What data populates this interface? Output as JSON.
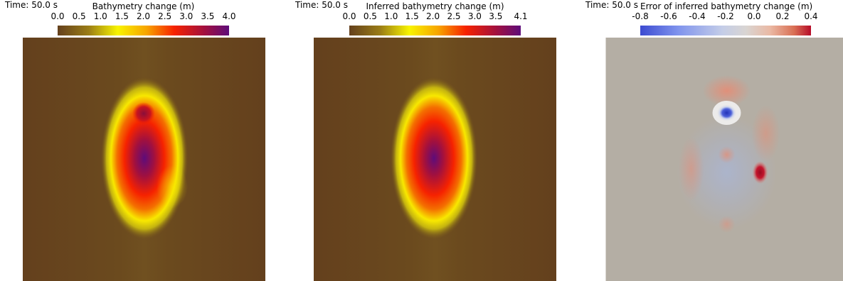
{
  "panels": [
    {
      "time": "Time: 50.0 s",
      "colorbar_title": "Bathymetry change (m)",
      "ticks": [
        "0.0",
        "0.5",
        "1.0",
        "1.5",
        "2.0",
        "2.5",
        "3.0",
        "3.5",
        "4.0"
      ]
    },
    {
      "time": "Time: 50.0 s",
      "colorbar_title": "Inferred bathymetry change (m)",
      "ticks": [
        "0.0",
        "0.5",
        "1.0",
        "1.5",
        "2.0",
        "2.5",
        "3.0",
        "3.5",
        "4.1"
      ]
    },
    {
      "time": "Time: 50.0 s",
      "colorbar_title": "Error of inferred bathymetry change (m)",
      "ticks": [
        "-0.8",
        "-0.6",
        "-0.4",
        "-0.2",
        "0.0",
        "0.2",
        "0.4"
      ]
    }
  ],
  "colors": {
    "bathy_colormap": [
      "#64401d",
      "#9a7c16",
      "#f8f400",
      "#f7a400",
      "#f62200",
      "#a01040",
      "#5e0c7a"
    ],
    "error_colormap": [
      "#3c4bd1",
      "#7f93ed",
      "#c4cde8",
      "#d9d5d2",
      "#eab9a4",
      "#d97055",
      "#b60c28"
    ],
    "background_bathy": "#64401d",
    "background_error": "#b4aea4"
  },
  "chart_data": [
    {
      "type": "heatmap",
      "title": "Bathymetry change (m)",
      "time_label": "Time: 50.0 s",
      "colorbar_range": [
        0.0,
        4.0
      ],
      "colorbar_ticks": [
        0.0,
        0.5,
        1.0,
        1.5,
        2.0,
        2.5,
        3.0,
        3.5,
        4.0
      ],
      "description_values": {
        "background": 0.0,
        "peak": 4.0,
        "secondary_peak": 3.8
      }
    },
    {
      "type": "heatmap",
      "title": "Inferred bathymetry change (m)",
      "time_label": "Time: 50.0 s",
      "colorbar_range": [
        0.0,
        4.1
      ],
      "colorbar_ticks": [
        0.0,
        0.5,
        1.0,
        1.5,
        2.0,
        2.5,
        3.0,
        3.5,
        4.1
      ],
      "description_values": {
        "background": 0.0,
        "peak": 4.1
      }
    },
    {
      "type": "heatmap",
      "title": "Error of inferred bathymetry change (m)",
      "time_label": "Time: 50.0 s",
      "colorbar_range": [
        -0.8,
        0.4
      ],
      "colorbar_ticks": [
        -0.8,
        -0.6,
        -0.4,
        -0.2,
        0.0,
        0.2,
        0.4
      ],
      "description_values": {
        "min": -0.8,
        "max": 0.4,
        "background": 0.0
      }
    }
  ]
}
